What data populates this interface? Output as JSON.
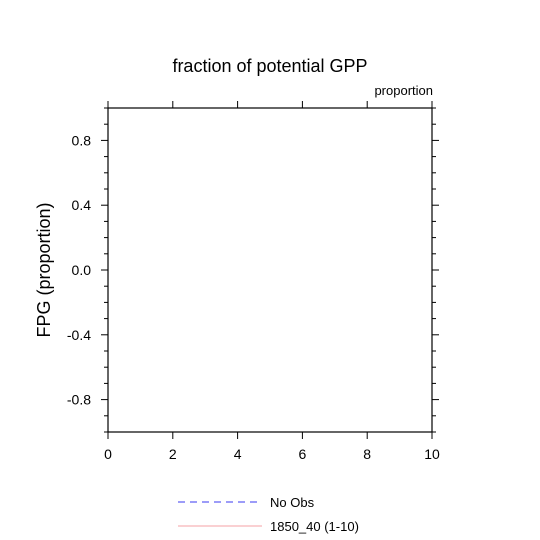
{
  "chart_data": {
    "type": "line",
    "title": "fraction of potential GPP",
    "units_label": "proportion",
    "ylabel": "FPG  (proportion)",
    "xlabel": "",
    "xlim": [
      0,
      10
    ],
    "ylim": [
      -1.0,
      1.0
    ],
    "x_ticks": [
      0,
      2,
      4,
      6,
      8,
      10
    ],
    "x_tick_labels": [
      "0",
      "2",
      "4",
      "6",
      "8",
      "10"
    ],
    "y_ticks": [
      -0.8,
      -0.4,
      0.0,
      0.4,
      0.8
    ],
    "y_tick_labels": [
      "-0.8",
      "-0.4",
      "0.0",
      "0.4",
      "0.8"
    ],
    "grid": false,
    "legend_position": "bottom-center",
    "series": [
      {
        "name": "No Obs",
        "color": "#3a3af0",
        "dash": "dashed",
        "x": [],
        "y": []
      },
      {
        "name": "1850_40 (1-10)",
        "color": "#f4a0a6",
        "dash": "solid",
        "x": [],
        "y": []
      }
    ]
  }
}
